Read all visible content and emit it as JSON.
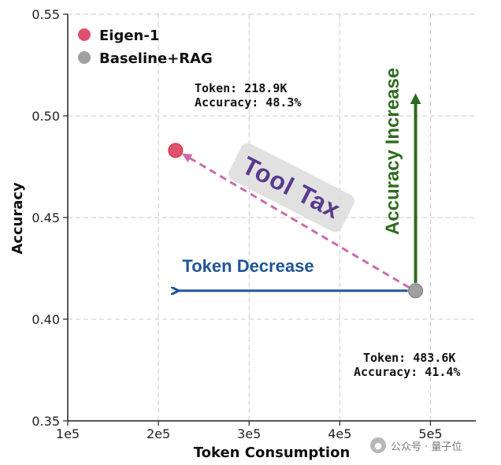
{
  "chart_data": {
    "type": "scatter",
    "xlabel": "Token Consumption",
    "ylabel": "Accuracy",
    "xlim": [
      100000,
      550000
    ],
    "ylim": [
      0.35,
      0.55
    ],
    "x_ticks": [
      "1e5",
      "2e5",
      "3e5",
      "4e5",
      "5e5"
    ],
    "x_tick_values": [
      100000,
      200000,
      300000,
      400000,
      500000
    ],
    "y_ticks": [
      "0.35",
      "0.40",
      "0.45",
      "0.50",
      "0.55"
    ],
    "y_tick_values": [
      0.35,
      0.4,
      0.45,
      0.5,
      0.55
    ],
    "grid": true,
    "legend_position": "top-left",
    "series": [
      {
        "name": "Eigen-1",
        "color": "#e0506f",
        "points": [
          {
            "x": 218900,
            "y": 0.483
          }
        ]
      },
      {
        "name": "Baseline+RAG",
        "color": "#a0a0a0",
        "points": [
          {
            "x": 483600,
            "y": 0.414
          }
        ]
      }
    ],
    "annotations": {
      "eigen_token": "Token: 218.9K",
      "eigen_accuracy": "Accuracy: 48.3%",
      "baseline_token": "Token: 483.6K",
      "baseline_accuracy": "Accuracy: 41.4%",
      "tool_tax": "Tool Tax",
      "token_decrease": "Token Decrease",
      "accuracy_increase": "Accuracy Increase"
    },
    "colors": {
      "tool_tax_line": "#c86cb0",
      "tool_tax_text": "#5a3a8e",
      "token_decrease": "#1f5596",
      "accuracy_increase": "#2e6b1f"
    }
  },
  "watermark": "公众号 · 量子位"
}
